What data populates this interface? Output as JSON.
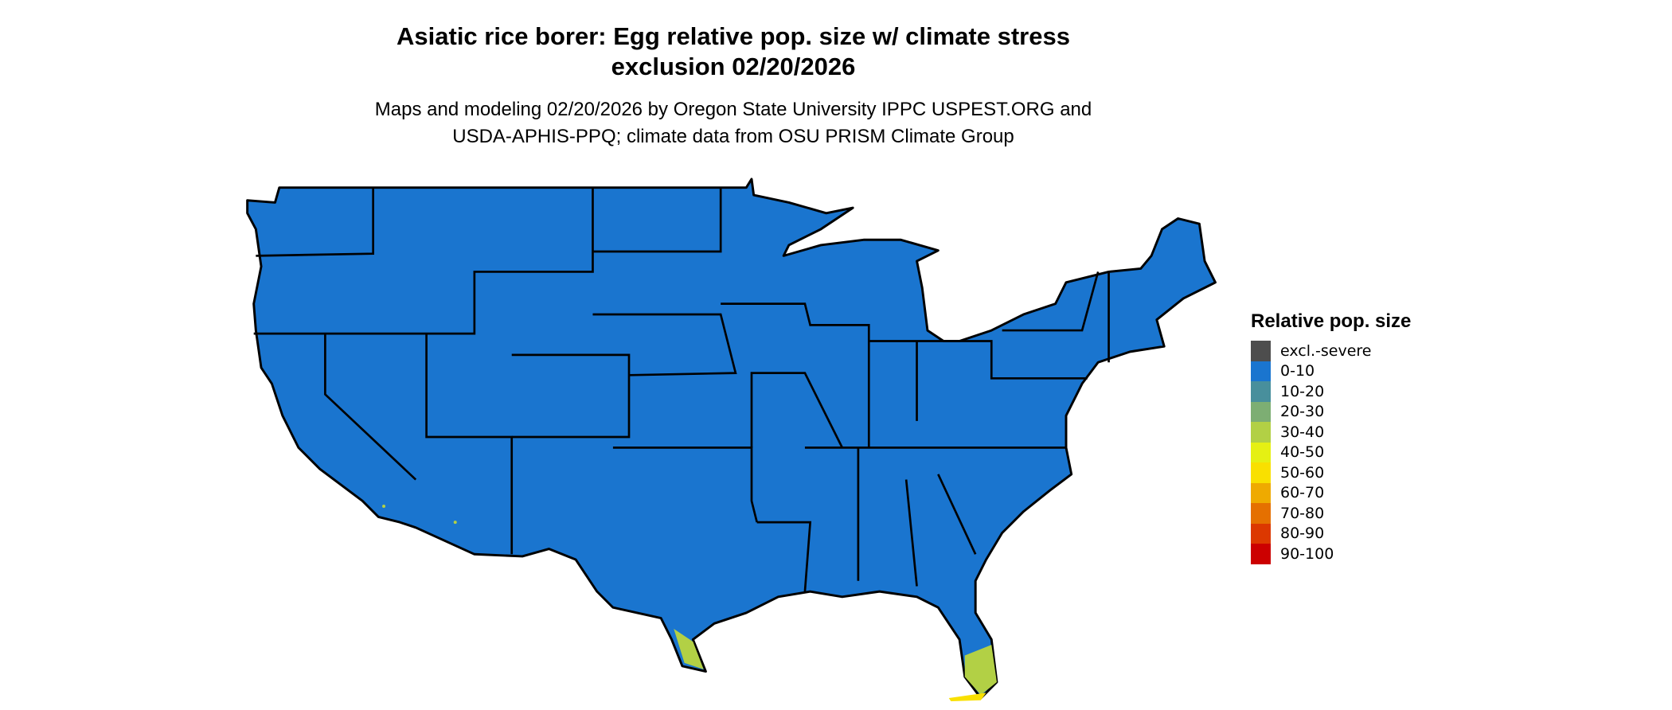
{
  "title_line1": "Asiatic rice borer: Egg relative pop. size w/ climate stress",
  "title_line2": "exclusion 02/20/2026",
  "subtitle_line1": "Maps and modeling 02/20/2026 by Oregon State University IPPC USPEST.ORG and",
  "subtitle_line2": "USDA-APHIS-PPQ; climate data from OSU PRISM Climate Group",
  "map": {
    "region": "Contiguous United States",
    "dominant_class": "0-10",
    "hotspots": [
      "South Florida: 20-60",
      "South Texas: 20-40",
      "Southern California / Arizona: isolated 20-40"
    ]
  },
  "legend": {
    "title": "Relative pop. size",
    "items": [
      {
        "label": "excl.-severe",
        "color": "#4d4d4d"
      },
      {
        "label": "0-10",
        "color": "#1a75cf"
      },
      {
        "label": "10-20",
        "color": "#488f9c"
      },
      {
        "label": "20-30",
        "color": "#7dae73"
      },
      {
        "label": "30-40",
        "color": "#b2d045"
      },
      {
        "label": "40-50",
        "color": "#e5f013"
      },
      {
        "label": "50-60",
        "color": "#f9e000"
      },
      {
        "label": "60-70",
        "color": "#efaa00"
      },
      {
        "label": "70-80",
        "color": "#e57000"
      },
      {
        "label": "80-90",
        "color": "#dc3800"
      },
      {
        "label": "90-100",
        "color": "#cc0000"
      }
    ]
  }
}
